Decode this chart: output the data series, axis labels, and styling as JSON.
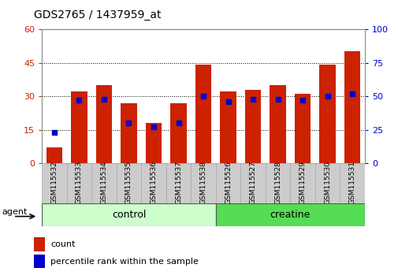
{
  "title": "GDS2765 / 1437959_at",
  "categories": [
    "GSM115532",
    "GSM115533",
    "GSM115534",
    "GSM115535",
    "GSM115536",
    "GSM115537",
    "GSM115538",
    "GSM115526",
    "GSM115527",
    "GSM115528",
    "GSM115529",
    "GSM115530",
    "GSM115531"
  ],
  "count_values": [
    7,
    32,
    35,
    27,
    18,
    27,
    44,
    32,
    33,
    35,
    31,
    44,
    50
  ],
  "percentile_values": [
    23,
    47,
    48,
    30,
    27,
    30,
    50,
    46,
    48,
    48,
    47,
    50,
    52
  ],
  "bar_color": "#cc2200",
  "blue_color": "#0000cc",
  "ylim_left": [
    0,
    60
  ],
  "ylim_right": [
    0,
    100
  ],
  "yticks_left": [
    0,
    15,
    30,
    45,
    60
  ],
  "yticks_right": [
    0,
    25,
    50,
    75,
    100
  ],
  "agent_label": "agent",
  "legend_count": "count",
  "legend_percentile": "percentile rank within the sample",
  "control_color": "#ccffcc",
  "creatine_color": "#55dd55",
  "bar_width": 0.65,
  "left_axis_color": "#cc2200",
  "right_axis_color": "#0000cc"
}
